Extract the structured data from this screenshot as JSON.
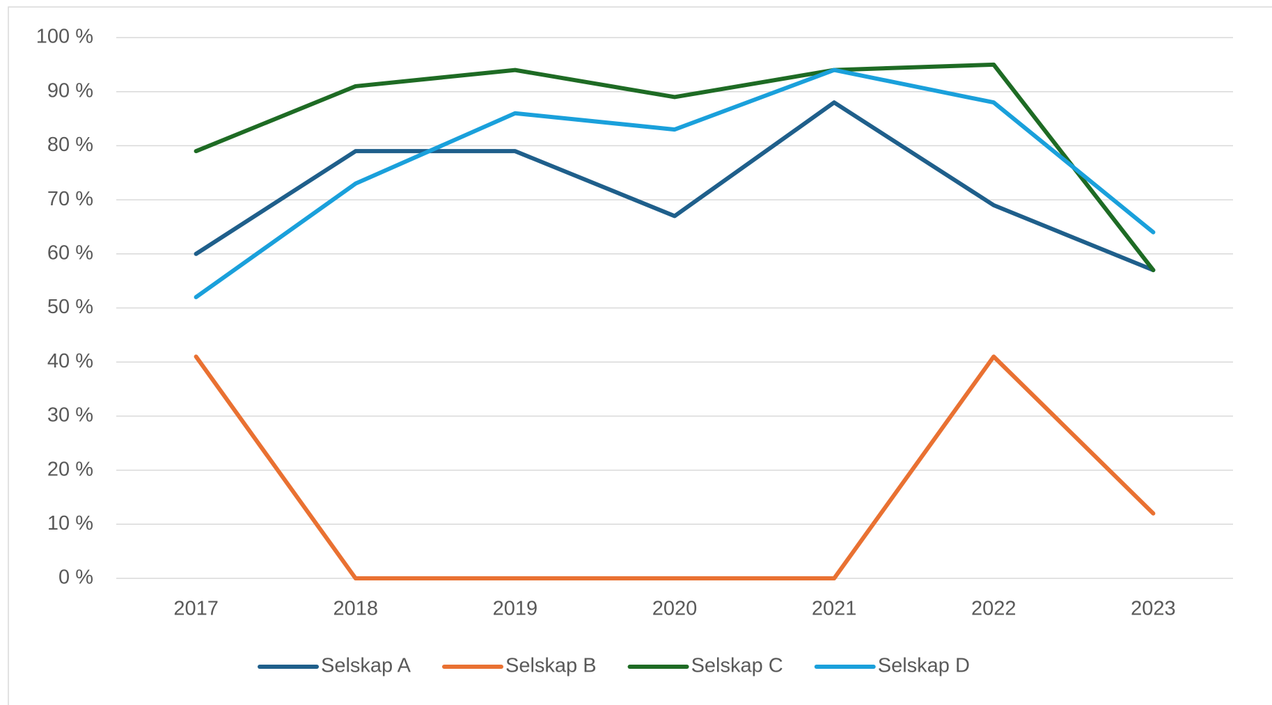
{
  "chart_data": {
    "type": "line",
    "categories": [
      "2017",
      "2018",
      "2019",
      "2020",
      "2021",
      "2022",
      "2023"
    ],
    "series": [
      {
        "name": "Selskap A",
        "color": "#1f5f8b",
        "values": [
          60,
          79,
          79,
          67,
          88,
          69,
          57
        ]
      },
      {
        "name": "Selskap B",
        "color": "#e97132",
        "values": [
          41,
          0,
          0,
          0,
          0,
          41,
          12
        ]
      },
      {
        "name": "Selskap C",
        "color": "#1e6b24",
        "values": [
          79,
          91,
          94,
          89,
          94,
          95,
          57
        ]
      },
      {
        "name": "Selskap D",
        "color": "#1aa0db",
        "values": [
          52,
          73,
          86,
          83,
          94,
          88,
          64
        ]
      }
    ],
    "ylim": [
      0,
      100
    ],
    "yticks": [
      {
        "value": 0,
        "label": "0 %"
      },
      {
        "value": 10,
        "label": "10 %"
      },
      {
        "value": 20,
        "label": "20 %"
      },
      {
        "value": 30,
        "label": "30 %"
      },
      {
        "value": 40,
        "label": "40 %"
      },
      {
        "value": 50,
        "label": "50 %"
      },
      {
        "value": 60,
        "label": "60 %"
      },
      {
        "value": 70,
        "label": "70 %"
      },
      {
        "value": 80,
        "label": "80 %"
      },
      {
        "value": 90,
        "label": "90 %"
      },
      {
        "value": 100,
        "label": "100 %"
      }
    ],
    "grid": true,
    "legend": "bottom"
  }
}
